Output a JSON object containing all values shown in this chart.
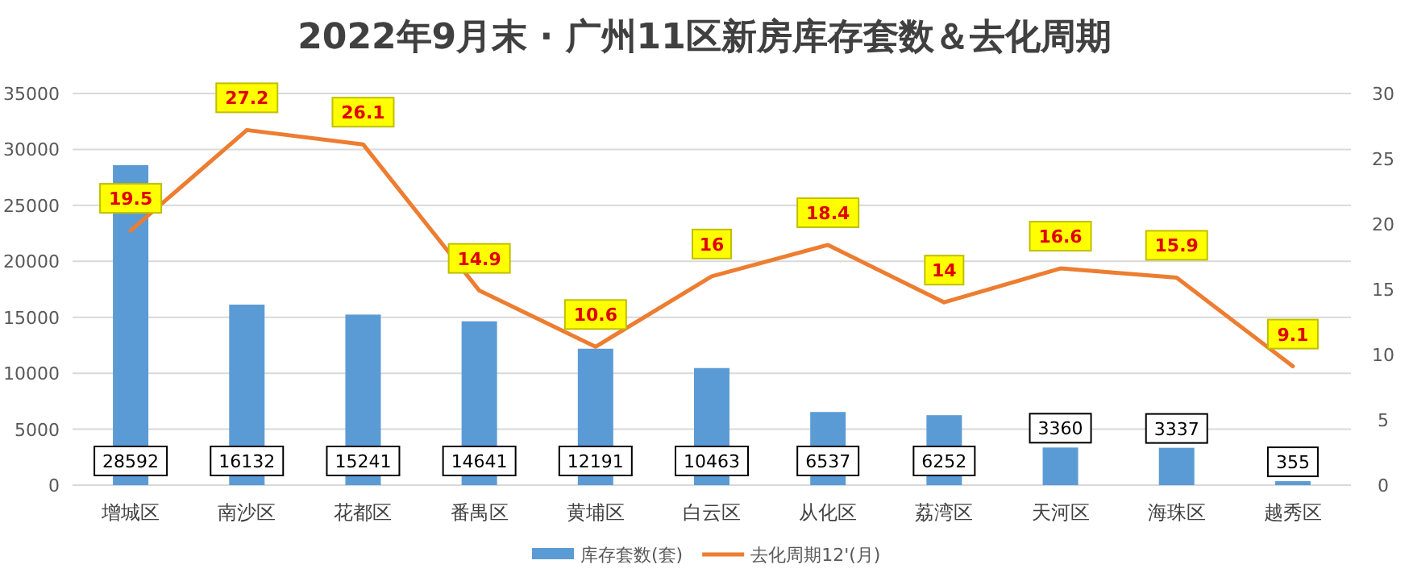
{
  "chart_data": {
    "type": "bar",
    "title": "2022年9月末 · 广州11区新房库存套数＆去化周期",
    "categories": [
      "增城区",
      "南沙区",
      "花都区",
      "番禺区",
      "黄埔区",
      "白云区",
      "从化区",
      "荔湾区",
      "天河区",
      "海珠区",
      "越秀区"
    ],
    "series": [
      {
        "name": "库存套数(套)",
        "type": "bar",
        "color": "#5b9bd5",
        "values": [
          28592,
          16132,
          15241,
          14641,
          12191,
          10463,
          6537,
          6252,
          3360,
          3337,
          355
        ]
      },
      {
        "name": "去化周期12'(月)",
        "type": "line",
        "axis": "y2",
        "color": "#ed7d31",
        "values": [
          19.5,
          27.2,
          26.1,
          14.9,
          10.6,
          16,
          18.4,
          14,
          16.6,
          15.9,
          9.1
        ]
      }
    ],
    "ylim": [
      0,
      35000
    ],
    "yticks": [
      0,
      5000,
      10000,
      15000,
      20000,
      25000,
      30000,
      35000
    ],
    "y2lim": [
      0,
      30
    ],
    "y2ticks": [
      0,
      5,
      10,
      15,
      20,
      25,
      30
    ],
    "grid": "y",
    "legend": "bottom",
    "data_labels": true
  }
}
